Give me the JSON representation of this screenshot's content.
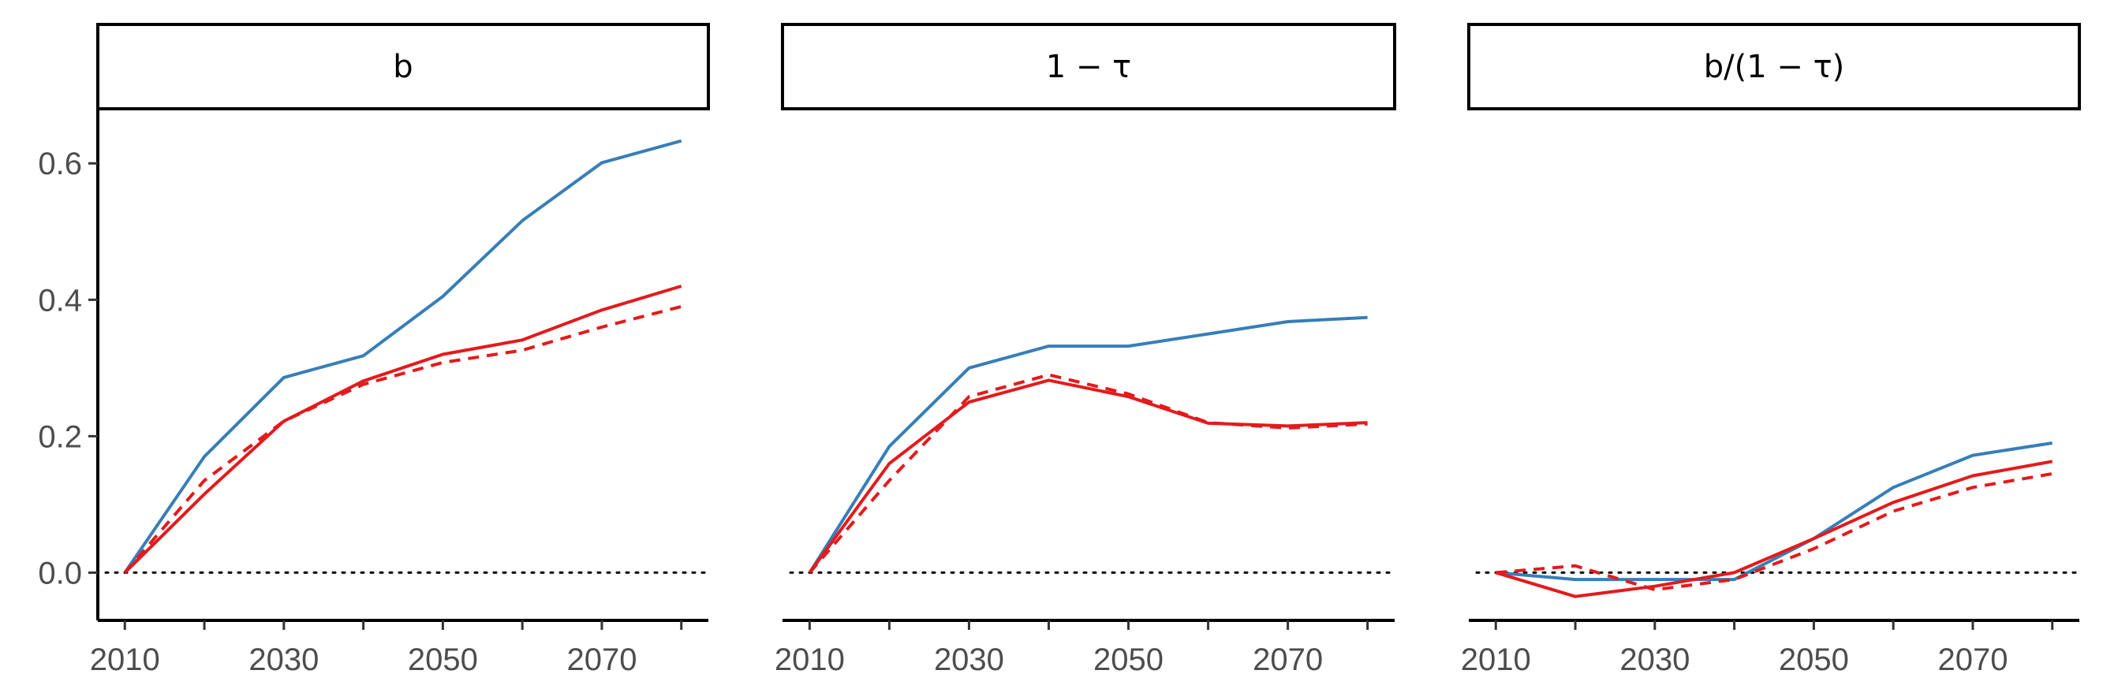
{
  "chart_data": [
    {
      "type": "line",
      "title": "b",
      "x": [
        2010,
        2020,
        2030,
        2040,
        2050,
        2060,
        2070,
        2080
      ],
      "xticks": [
        2010,
        2030,
        2050,
        2070
      ],
      "yticks": [
        "0.0",
        "0.2",
        "0.4",
        "0.6"
      ],
      "ylim": [
        -0.07,
        0.68
      ],
      "xlim": [
        2006.6,
        2083.4
      ],
      "series": [
        {
          "color": "#377eb8",
          "dash": false,
          "values": [
            0.0,
            0.17,
            0.286,
            0.318,
            0.405,
            0.516,
            0.601,
            0.633
          ]
        },
        {
          "color": "#e41a1c",
          "dash": false,
          "values": [
            0.0,
            0.115,
            0.222,
            0.281,
            0.32,
            0.341,
            0.385,
            0.42
          ]
        },
        {
          "color": "#e41a1c",
          "dash": true,
          "values": [
            0.0,
            0.135,
            0.222,
            0.276,
            0.308,
            0.326,
            0.36,
            0.39
          ]
        }
      ],
      "reference_line": 0
    },
    {
      "type": "line",
      "title": "1 − τ",
      "x": [
        2010,
        2020,
        2030,
        2040,
        2050,
        2060,
        2070,
        2080
      ],
      "xticks": [
        2010,
        2030,
        2050,
        2070
      ],
      "ylim": [
        -0.07,
        0.68
      ],
      "xlim": [
        2006.6,
        2083.4
      ],
      "series": [
        {
          "color": "#377eb8",
          "dash": false,
          "values": [
            0.0,
            0.185,
            0.3,
            0.332,
            0.332,
            0.35,
            0.368,
            0.374
          ]
        },
        {
          "color": "#e41a1c",
          "dash": false,
          "values": [
            0.0,
            0.16,
            0.25,
            0.282,
            0.258,
            0.219,
            0.215,
            0.22
          ]
        },
        {
          "color": "#e41a1c",
          "dash": true,
          "values": [
            0.0,
            0.135,
            0.258,
            0.29,
            0.262,
            0.22,
            0.212,
            0.218
          ]
        }
      ],
      "reference_line": 0
    },
    {
      "type": "line",
      "title": "b/(1 − τ)",
      "x": [
        2010,
        2020,
        2030,
        2040,
        2050,
        2060,
        2070,
        2080
      ],
      "xticks": [
        2010,
        2030,
        2050,
        2070
      ],
      "ylim": [
        -0.07,
        0.68
      ],
      "xlim": [
        2006.6,
        2083.4
      ],
      "series": [
        {
          "color": "#377eb8",
          "dash": false,
          "values": [
            0.0,
            -0.01,
            -0.01,
            -0.01,
            0.05,
            0.125,
            0.172,
            0.19
          ]
        },
        {
          "color": "#e41a1c",
          "dash": false,
          "values": [
            0.0,
            -0.035,
            -0.02,
            0.0,
            0.05,
            0.103,
            0.142,
            0.163
          ]
        },
        {
          "color": "#e41a1c",
          "dash": true,
          "values": [
            0.0,
            0.01,
            -0.025,
            -0.01,
            0.035,
            0.09,
            0.125,
            0.145
          ]
        }
      ],
      "reference_line": 0
    }
  ]
}
